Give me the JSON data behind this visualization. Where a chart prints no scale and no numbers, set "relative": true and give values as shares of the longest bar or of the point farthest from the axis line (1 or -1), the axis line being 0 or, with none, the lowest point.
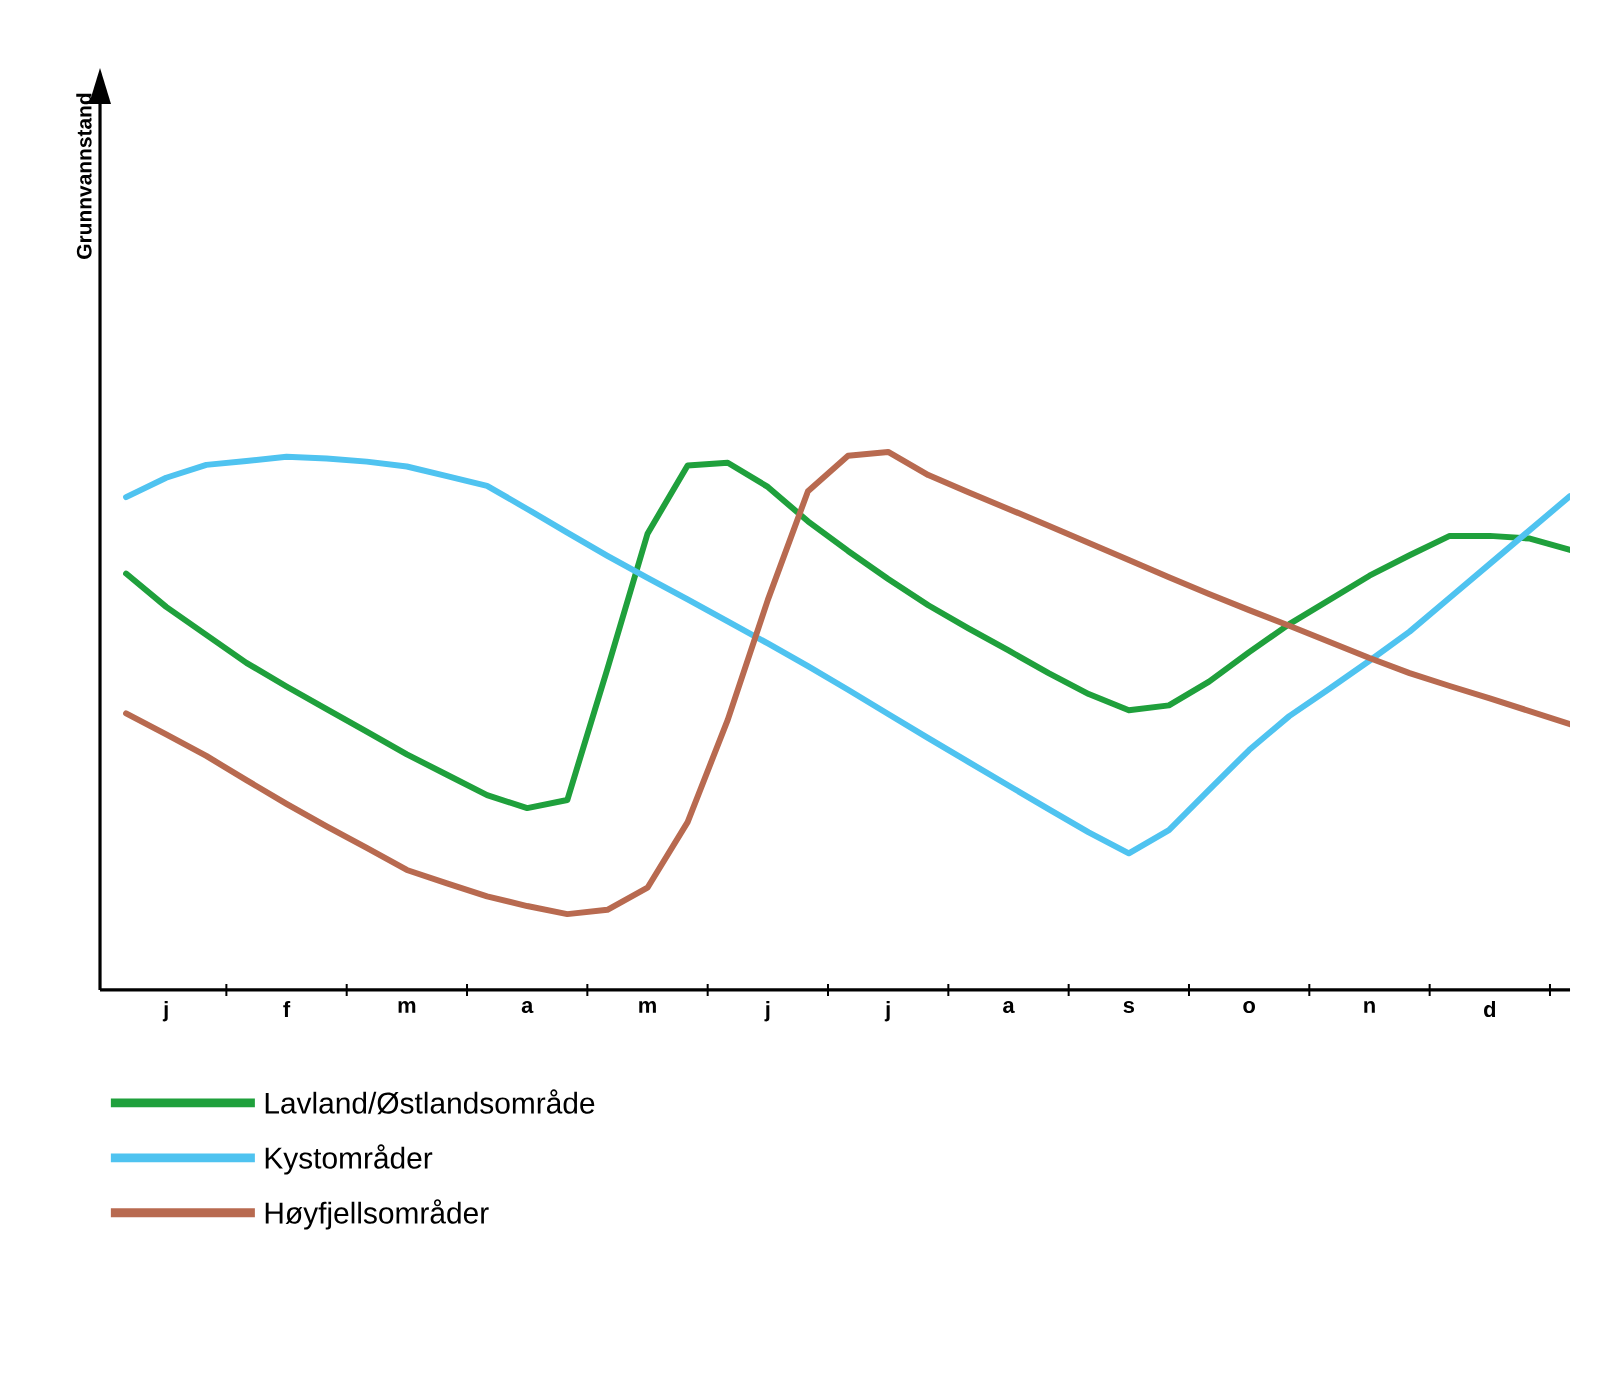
{
  "chart_data": {
    "type": "line",
    "relative": true,
    "annotations": [
      "Grunnvannstand"
    ],
    "legend": "bottom",
    "line_style": "solid",
    "marker": "none",
    "categories": [
      null,
      "j",
      null,
      null,
      "f",
      null,
      null,
      "m",
      null,
      null,
      "a",
      null,
      null,
      "m",
      null,
      null,
      "j",
      null,
      null,
      "j",
      null,
      null,
      "a",
      null,
      null,
      "s",
      null,
      null,
      "o",
      null,
      null,
      "n",
      null,
      null,
      "d",
      null,
      null
    ],
    "series": [
      {
        "name": "Lavland/Østlandsområde",
        "color": "#1fa03c",
        "values": [
          0.774,
          0.712,
          0.66,
          0.608,
          0.564,
          0.522,
          0.48,
          0.438,
          0.4,
          0.362,
          0.338,
          0.353,
          0.597,
          0.848,
          0.975,
          0.98,
          0.935,
          0.871,
          0.816,
          0.764,
          0.715,
          0.672,
          0.631,
          0.589,
          0.55,
          0.52,
          0.529,
          0.573,
          0.628,
          0.68,
          0.725,
          0.77,
          0.808,
          0.844,
          0.844,
          0.839,
          0.818
        ]
      },
      {
        "name": "Kystområder",
        "color": "#4fc3f0",
        "values": [
          0.916,
          0.952,
          0.976,
          0.983,
          0.991,
          0.988,
          0.982,
          0.973,
          0.955,
          0.937,
          0.894,
          0.85,
          0.807,
          0.766,
          0.726,
          0.685,
          0.644,
          0.602,
          0.558,
          0.513,
          0.468,
          0.424,
          0.38,
          0.336,
          0.293,
          0.254,
          0.297,
          0.372,
          0.446,
          0.509,
          0.56,
          0.612,
          0.666,
          0.729,
          0.792,
          0.855,
          0.918
        ]
      },
      {
        "name": "Høyfjellsområder",
        "color": "#b86a50",
        "values": [
          0.514,
          0.475,
          0.435,
          0.39,
          0.346,
          0.304,
          0.264,
          0.223,
          0.198,
          0.174,
          0.156,
          0.141,
          0.149,
          0.19,
          0.312,
          0.502,
          0.725,
          0.927,
          0.993,
          1.0,
          0.957,
          0.925,
          0.894,
          0.863,
          0.831,
          0.799,
          0.767,
          0.736,
          0.706,
          0.677,
          0.647,
          0.617,
          0.589,
          0.565,
          0.542,
          0.518,
          0.494
        ]
      }
    ]
  }
}
